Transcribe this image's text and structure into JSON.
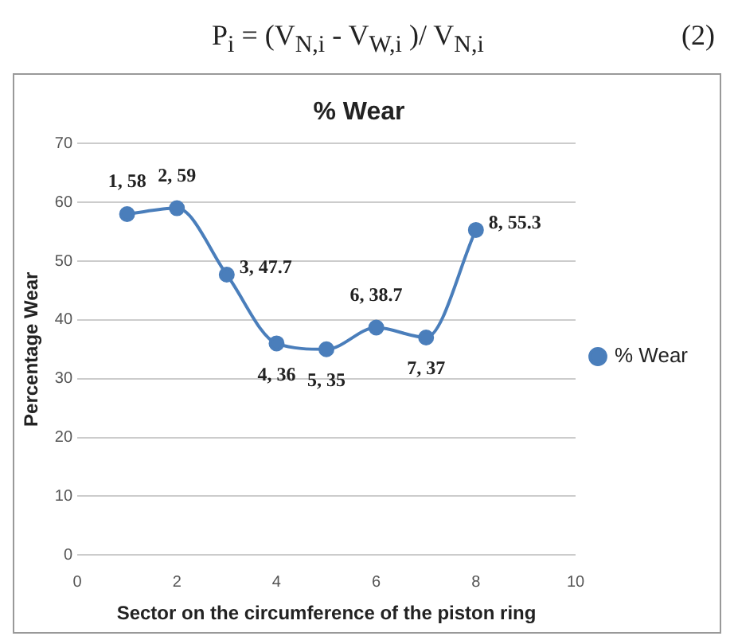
{
  "chart_data": {
    "type": "line",
    "title": "% Wear",
    "xlabel": "Sector on the circumference of the piston ring",
    "ylabel": "Percentage Wear",
    "annotations": [
      "P$_{i}$ = (V$_{N,i}$  - V$_{W,i}$ )/ V$_{N,i}$",
      "(2)"
    ],
    "x": [
      1,
      2,
      3,
      4,
      5,
      6,
      7,
      8
    ],
    "series": [
      {
        "name": "% Wear",
        "color": "#4a7ebb",
        "values": [
          58,
          59,
          47.7,
          36,
          35,
          38.7,
          37,
          55.3
        ],
        "value_labels": [
          "1, 58",
          "2, 59",
          "3, 47.7",
          "4, 36",
          "5, 35",
          "6, 38.7",
          "7, 37",
          "8, 55.3"
        ]
      }
    ],
    "xlim": [
      0,
      10
    ],
    "xticks": [
      0,
      2,
      4,
      6,
      8,
      10
    ],
    "ylim": [
      0,
      70
    ],
    "yticks": [
      0,
      10,
      20,
      30,
      40,
      50,
      60,
      70
    ],
    "grid": "y",
    "legend": "right",
    "marker": "circle",
    "line_style": "solid"
  }
}
